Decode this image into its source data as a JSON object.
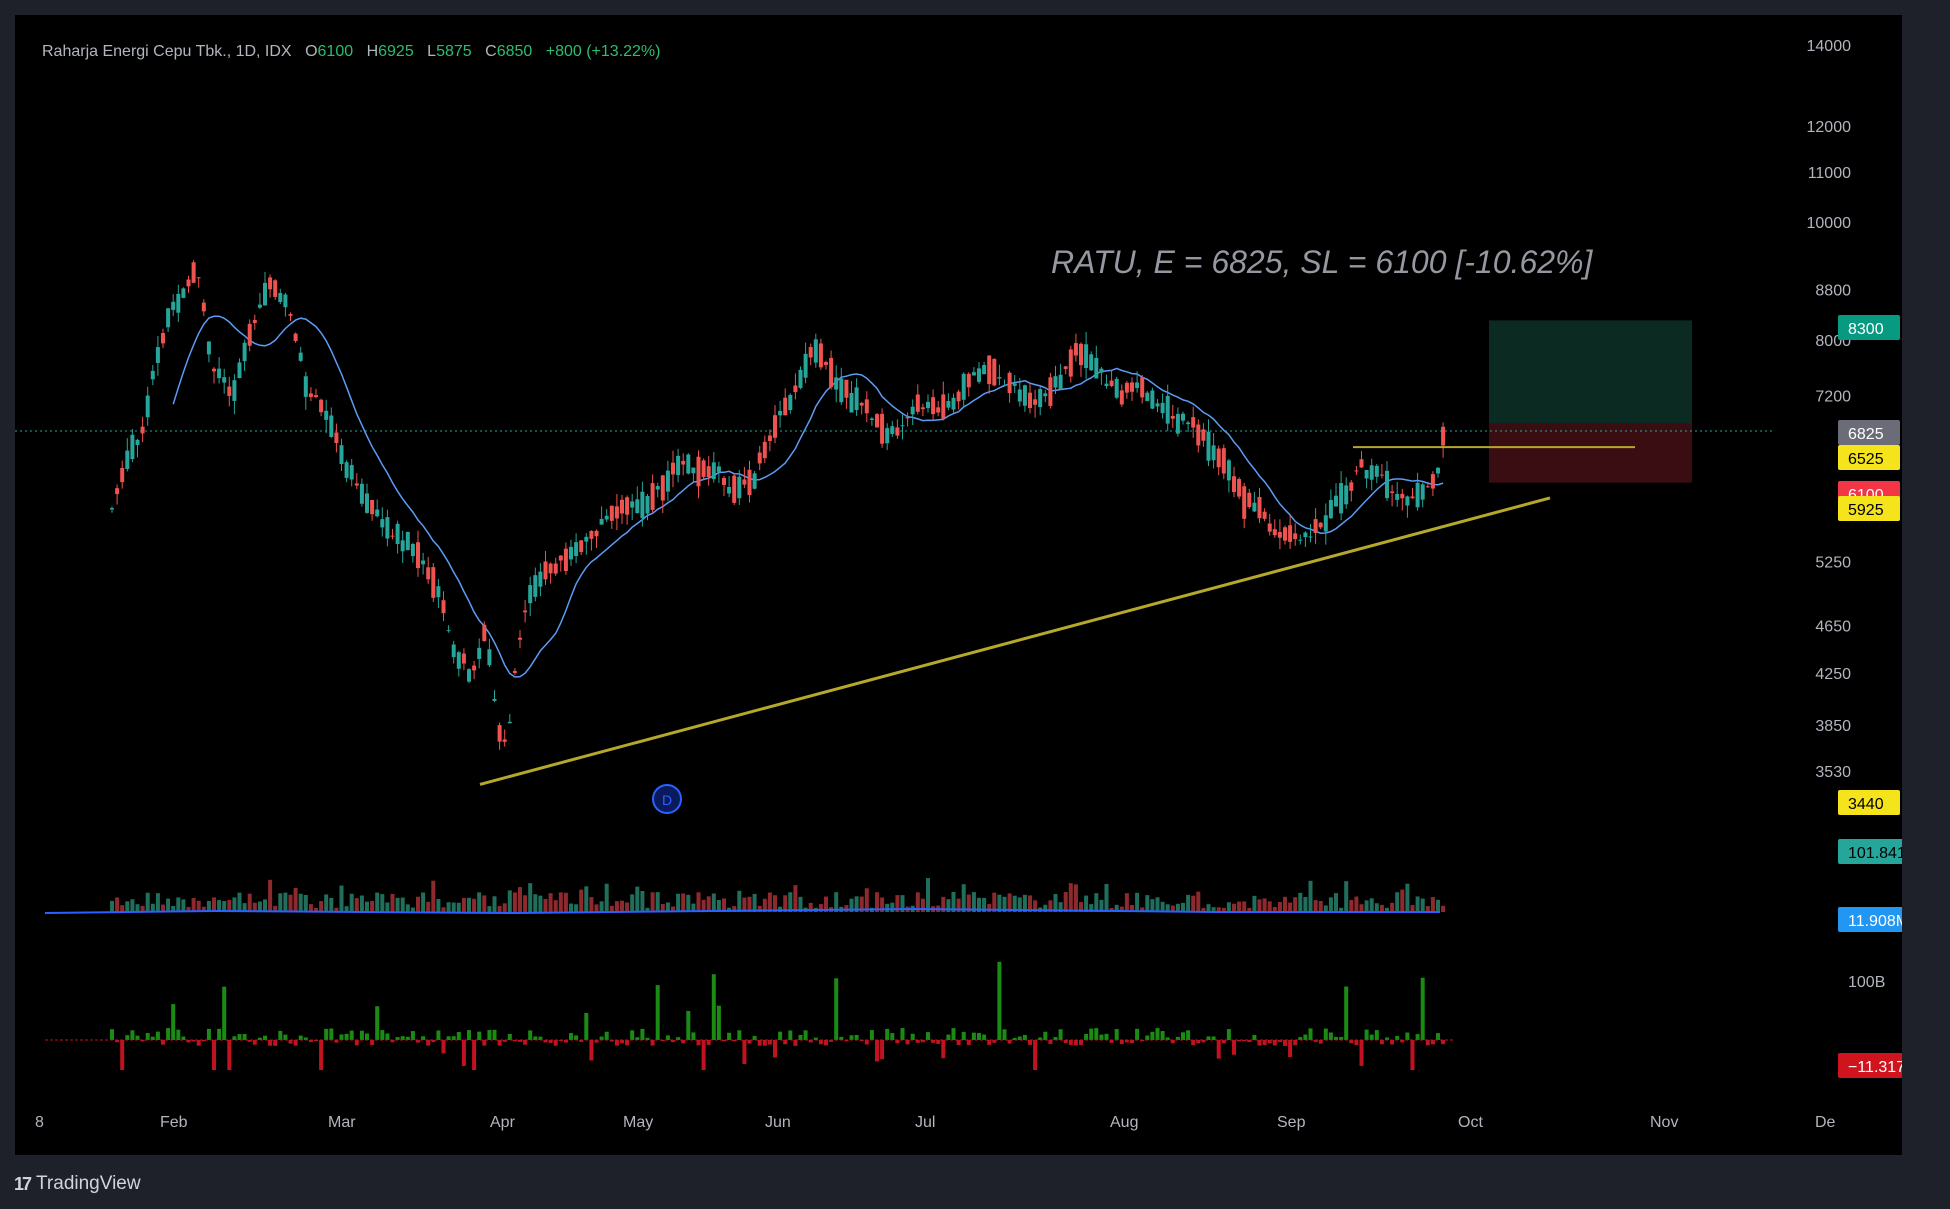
{
  "legend": {
    "symbol": "Raharja Energi Cepu Tbk., 1D, IDX",
    "open_label": "O",
    "open": "6100",
    "high_label": "H",
    "high": "6925",
    "low_label": "L",
    "low": "5875",
    "close_label": "C",
    "close": "6850",
    "change": "+800 (+13.22%)"
  },
  "annotation": "RATU, E = 6825, SL = 6100 [-10.62%]",
  "branding": "TradingView",
  "price_axis": {
    "scale": "log",
    "ticks": [
      "14000",
      "12000",
      "11000",
      "10000",
      "8800",
      "8000",
      "7200",
      "5250",
      "4650",
      "4250",
      "3850",
      "3530"
    ]
  },
  "price_badges": [
    {
      "label": "8300",
      "bg": "#089981",
      "fg": "#ffffff"
    },
    {
      "label": "6825",
      "bg": "#6a6d78",
      "fg": "#ffffff"
    },
    {
      "label": "6525",
      "bg": "#f5e31b",
      "fg": "#000000"
    },
    {
      "label": "6100",
      "bg": "#f23645",
      "fg": "#ffffff"
    },
    {
      "label": "5925",
      "bg": "#f5e31b",
      "fg": "#000000"
    },
    {
      "label": "3440",
      "bg": "#f5e31b",
      "fg": "#000000"
    },
    {
      "label": "101.841M",
      "bg": "#26a69a",
      "fg": "#000000"
    },
    {
      "label": "11.908M",
      "bg": "#2196f3",
      "fg": "#ffffff"
    },
    {
      "label": "100B",
      "bg": "",
      "fg": "#b2b5be"
    },
    {
      "label": "−11.317B",
      "bg": "#d0141e",
      "fg": "#ffffff"
    }
  ],
  "time_axis": [
    "8",
    "Feb",
    "Mar",
    "Apr",
    "May",
    "Jun",
    "Jul",
    "Aug",
    "Sep",
    "Oct",
    "Nov",
    "De"
  ],
  "colors": {
    "up": "#26a69a",
    "down": "#ef5350",
    "ma": "#5b9cf6",
    "trend": "#b5a82a",
    "vol_ma": "#2962ff",
    "flow_up": "#1b8c13",
    "flow_down": "#c1121f",
    "target_zone": "#0b2a22",
    "stop_zone": "#3a0d12",
    "text": "#b2b5be"
  },
  "events_marker": {
    "icon": "dividend-event-icon",
    "label": "D"
  },
  "chart_data": {
    "type": "candlestick",
    "title": "Raharja Energi Cepu Tbk., 1D, IDX",
    "ylim": [
      3200,
      15000
    ],
    "yscale": "log",
    "trade_plan": {
      "entry": 6825,
      "stop_loss": 6100,
      "target": 8300,
      "resistance": 6525
    },
    "support_trendline": [
      {
        "date": "2024-04-01",
        "price": 3440
      },
      {
        "date": "2024-10-17",
        "price": 5925
      }
    ],
    "candles_approx": [
      {
        "month": "Jan",
        "o": 7000,
        "c": 7000
      },
      {
        "month": "Feb",
        "o": 7600,
        "c": 9500
      },
      {
        "month": "Mar",
        "o": 7300,
        "c": 5500
      },
      {
        "month": "Apr",
        "o": 3600,
        "c": 5000
      },
      {
        "month": "May",
        "o": 5600,
        "c": 6100
      },
      {
        "month": "Jun",
        "o": 6800,
        "c": 7600
      },
      {
        "month": "Jul",
        "o": 6900,
        "c": 7400
      },
      {
        "month": "Aug",
        "o": 7700,
        "c": 7100
      },
      {
        "month": "Sep",
        "o": 6200,
        "c": 5600
      },
      {
        "month": "Oct",
        "o": 6100,
        "c": 6850
      }
    ],
    "latest_volume": "101.841M",
    "volume_ma": "11.908M",
    "money_flow_latest": "−11.317B"
  }
}
